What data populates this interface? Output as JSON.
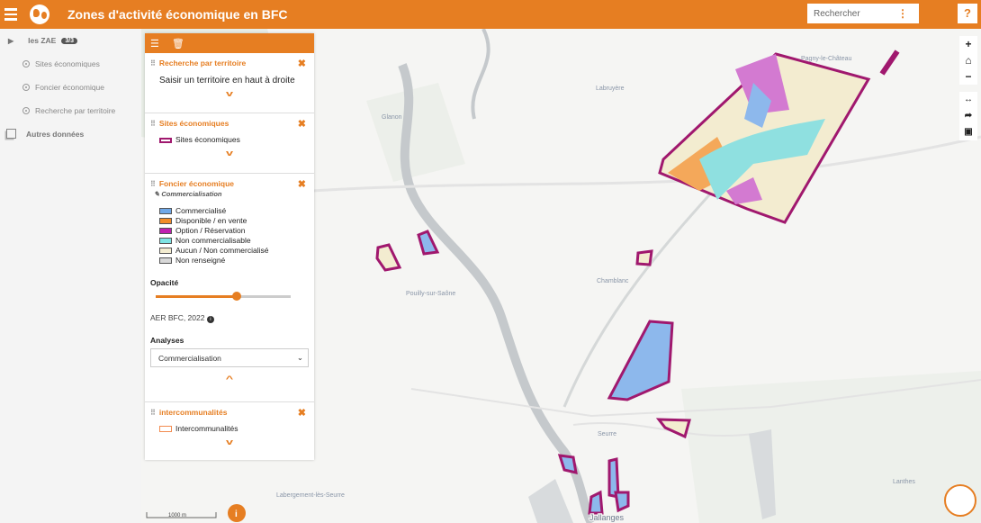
{
  "header": {
    "title": "Zones d'activité économique en BFC",
    "search_placeholder": "Rechercher",
    "help": "?"
  },
  "sidebar": {
    "group": "les ZAE",
    "badge": "3/3",
    "items": [
      {
        "label": "Sites économiques"
      },
      {
        "label": "Foncier économique"
      },
      {
        "label": "Recherche par territoire"
      }
    ],
    "other": "Autres données"
  },
  "panel": {
    "sec1": {
      "title": "Recherche par territoire",
      "text": "Saisir un territoire en haut à droite"
    },
    "sec2": {
      "title": "Sites économiques",
      "legend": "Sites économiques"
    },
    "sec3": {
      "title": "Foncier économique",
      "subtitle": "Commercialisation",
      "legend": [
        {
          "label": "Commercialisé",
          "color": "#6fa8e8"
        },
        {
          "label": "Disponible / en vente",
          "color": "#f28c28"
        },
        {
          "label": "Option / Réservation",
          "color": "#c020b0"
        },
        {
          "label": "Non commercialisable",
          "color": "#7ee3e3"
        },
        {
          "label": "Aucun / Non commercialisé",
          "color": "#f3ecd0"
        },
        {
          "label": "Non renseigné",
          "color": "#d8d8d8"
        }
      ],
      "opacity_label": "Opacité",
      "opacity": 0.6,
      "source": "AER BFC, 2022",
      "analyses_label": "Analyses",
      "analyses_value": "Commercialisation"
    },
    "sec4": {
      "title": "intercommunalités",
      "legend": "Intercommunalités"
    }
  },
  "map": {
    "places": [
      "Pagny-le-Château",
      "Labruyère",
      "Glanon",
      "Pouilly-sur-Saône",
      "Chamblanc",
      "Seurre",
      "Labergement-lès-Seurre",
      "Lanthes",
      "Jallanges"
    ],
    "scale": "1000 m",
    "accent": "#e67e22",
    "zone_border": "#a0186e"
  }
}
